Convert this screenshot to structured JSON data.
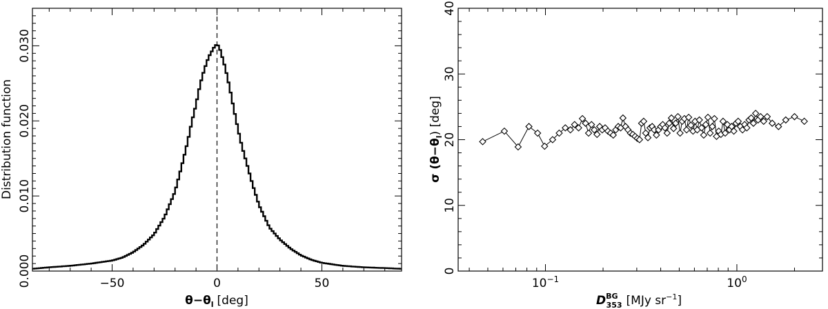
{
  "chart_data": [
    {
      "type": "line",
      "xlabel_sym": "θ−θ",
      "xlabel_sub": "l",
      "xlabel_unit": "[deg]",
      "ylabel": "Distribution function",
      "xlim": [
        -88,
        88
      ],
      "ylim": [
        0,
        0.035
      ],
      "xticks": [
        -50,
        0,
        50
      ],
      "xtick_labels": [
        "−50",
        "0",
        "50"
      ],
      "yticks": [
        0,
        0.01,
        0.02,
        0.03
      ],
      "ytick_labels": [
        "0.000",
        "0.010",
        "0.020",
        "0.030"
      ],
      "reference_line_x": 0,
      "series": [
        {
          "style": "histogram-step",
          "x": [
            -88,
            -80,
            -70,
            -60,
            -50,
            -45,
            -40,
            -35,
            -30,
            -25,
            -20,
            -17,
            -14,
            -12,
            -10,
            -8,
            -6,
            -4,
            -2,
            -1,
            0,
            1,
            2,
            4,
            6,
            8,
            10,
            12,
            14,
            17,
            20,
            25,
            30,
            35,
            40,
            45,
            50,
            60,
            70,
            80,
            88
          ],
          "y": [
            0.0003,
            0.0005,
            0.0007,
            0.001,
            0.0014,
            0.0018,
            0.0025,
            0.0035,
            0.0049,
            0.0072,
            0.0106,
            0.0138,
            0.0172,
            0.0199,
            0.0222,
            0.0249,
            0.0269,
            0.0285,
            0.0295,
            0.03,
            0.0302,
            0.0299,
            0.029,
            0.027,
            0.0245,
            0.0216,
            0.0189,
            0.0165,
            0.0145,
            0.0115,
            0.0088,
            0.0058,
            0.0042,
            0.003,
            0.0021,
            0.0015,
            0.0011,
            0.0007,
            0.0005,
            0.0004,
            0.0003
          ]
        }
      ]
    },
    {
      "type": "line",
      "xscale": "log",
      "xlabel_sym": "D",
      "xlabel_sup": "BG",
      "xlabel_sub": "353",
      "xlabel_unit": "[MJy sr",
      "xlabel_unit_sup": "−1",
      "xlabel_unit_end": "]",
      "ylabel_sym": "σ (θ−θ",
      "ylabel_sub": "l",
      "ylabel_end": ") [deg]",
      "xlim": [
        0.035,
        2.8
      ],
      "ylim": [
        0,
        40
      ],
      "xticks": [
        0.1,
        1
      ],
      "xtick_base": "10",
      "xtick_exps": [
        "−1",
        "0"
      ],
      "yticks": [
        0,
        10,
        20,
        30,
        40
      ],
      "ytick_labels": [
        "0",
        "10",
        "20",
        "30",
        "40"
      ],
      "series": [
        {
          "marker": "diamond",
          "x": [
            0.047,
            0.061,
            0.072,
            0.082,
            0.091,
            0.099,
            0.109,
            0.118,
            0.127,
            0.135,
            0.142,
            0.149,
            0.156,
            0.162,
            0.168,
            0.174,
            0.18,
            0.186,
            0.192,
            0.198,
            0.205,
            0.212,
            0.219,
            0.226,
            0.233,
            0.24,
            0.247,
            0.254,
            0.262,
            0.27,
            0.278,
            0.286,
            0.294,
            0.302,
            0.31,
            0.318,
            0.326,
            0.334,
            0.343,
            0.352,
            0.361,
            0.37,
            0.38,
            0.39,
            0.4,
            0.41,
            0.421,
            0.432,
            0.443,
            0.455,
            0.467,
            0.479,
            0.492,
            0.505,
            0.518,
            0.532,
            0.546,
            0.56,
            0.575,
            0.59,
            0.605,
            0.621,
            0.637,
            0.654,
            0.671,
            0.688,
            0.706,
            0.725,
            0.744,
            0.763,
            0.783,
            0.804,
            0.825,
            0.847,
            0.869,
            0.892,
            0.915,
            0.939,
            0.964,
            0.99,
            1.016,
            1.043,
            1.07,
            1.098,
            1.127,
            1.157,
            1.188,
            1.22,
            1.253,
            1.29,
            1.33,
            1.38,
            1.44,
            1.53,
            1.65,
            1.8,
            2.0,
            2.25
          ],
          "y": [
            19.7,
            21.3,
            18.9,
            22.0,
            21.0,
            19.0,
            20.0,
            21.0,
            21.8,
            21.5,
            22.3,
            21.8,
            23.2,
            22.5,
            21.0,
            22.3,
            21.5,
            20.8,
            22.0,
            21.5,
            21.8,
            21.3,
            21.0,
            20.7,
            21.5,
            22.0,
            21.8,
            23.3,
            22.0,
            21.5,
            21.0,
            20.8,
            20.5,
            20.2,
            20.0,
            22.5,
            22.8,
            21.0,
            20.3,
            21.8,
            22.0,
            21.5,
            20.7,
            21.5,
            22.0,
            22.3,
            21.8,
            21.0,
            22.5,
            23.3,
            21.7,
            22.5,
            23.5,
            21.0,
            22.8,
            23.2,
            21.5,
            23.4,
            22.2,
            21.3,
            22.8,
            21.5,
            23.0,
            21.8,
            20.7,
            22.3,
            23.4,
            21.0,
            22.0,
            23.2,
            20.5,
            21.3,
            20.8,
            22.8,
            21.0,
            22.3,
            21.5,
            22.0,
            21.3,
            22.5,
            22.8,
            22.0,
            21.5,
            22.3,
            21.8,
            23.0,
            23.3,
            22.5,
            24.0,
            23.0,
            23.5,
            22.8,
            23.5,
            22.5,
            22.0,
            23.0,
            23.5,
            22.8
          ]
        }
      ]
    }
  ]
}
